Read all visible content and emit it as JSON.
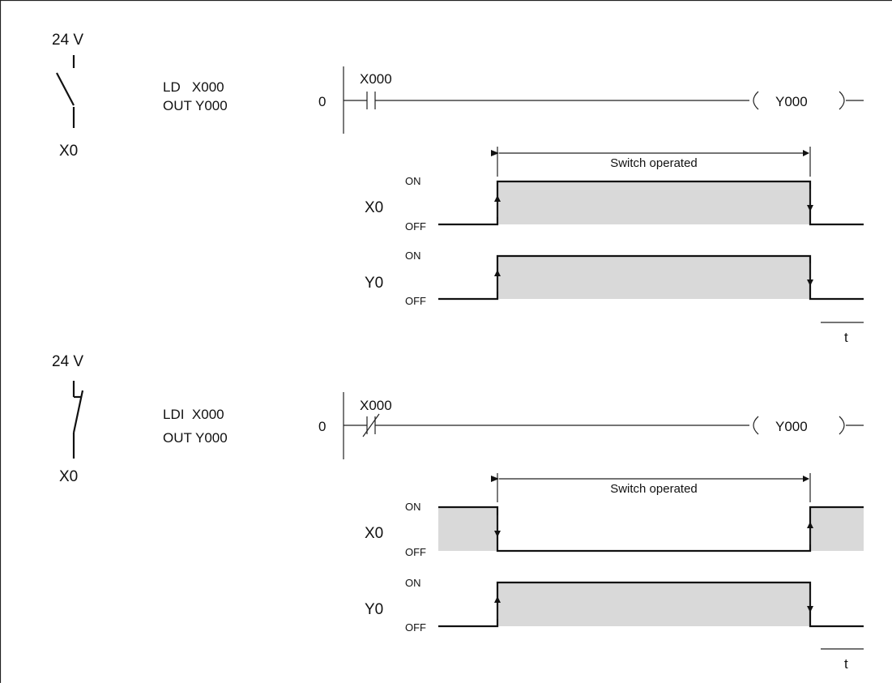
{
  "supply_label": "24 V",
  "input_label": "X0",
  "sections": [
    {
      "instruction_line1": "LD   X000",
      "instruction_line2": "OUT Y000",
      "step": "0",
      "contact_name": "X000",
      "coil_name": "Y000",
      "span_label": "Switch operated",
      "signals": [
        {
          "name": "X0",
          "on": "ON",
          "off": "OFF"
        },
        {
          "name": "Y0",
          "on": "ON",
          "off": "OFF"
        }
      ],
      "time_label": "t"
    },
    {
      "instruction_line1": "LDI  X000",
      "instruction_line2": "OUT Y000",
      "step": "0",
      "contact_name": "X000",
      "coil_name": "Y000",
      "span_label": "Switch operated",
      "signals": [
        {
          "name": "X0",
          "on": "ON",
          "off": "OFF"
        },
        {
          "name": "Y0",
          "on": "ON",
          "off": "OFF"
        }
      ],
      "time_label": "t"
    }
  ]
}
